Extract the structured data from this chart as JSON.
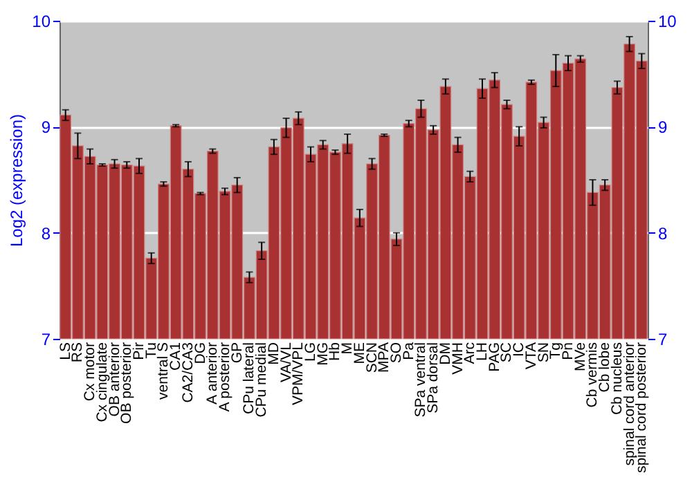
{
  "chart_data": {
    "type": "bar",
    "ylabel": "Log2 (expression)",
    "categories": [
      "LS",
      "RS",
      "Cx motor",
      "Cx cingulate",
      "OB anterior",
      "OB posterior",
      "Pir",
      "Tu",
      "ventral S",
      "CA1",
      "CA2/CA3",
      "DG",
      "A anterior",
      "A posterior",
      "GP",
      "CPu lateral",
      "CPu medial",
      "MD",
      "VA/VL",
      "VPM/VPL",
      "LG",
      "MG",
      "Hb",
      "M",
      "ME",
      "SCN",
      "MPA",
      "SO",
      "Pa",
      "SPa ventral",
      "SPa dorsal",
      "DM",
      "VMH",
      "Arc",
      "LH",
      "PAG",
      "SC",
      "IC",
      "VTA",
      "SN",
      "Tg",
      "Pn",
      "MVe",
      "Cb vermis",
      "Cb lobe",
      "Cb nucleus",
      "spinal cord anterior",
      "spinal cord posterior"
    ],
    "values": [
      9.11,
      8.82,
      8.72,
      8.64,
      8.65,
      8.64,
      8.63,
      7.76,
      8.46,
      9.01,
      8.6,
      8.37,
      8.77,
      8.39,
      8.45,
      7.58,
      7.83,
      8.81,
      8.99,
      9.08,
      8.74,
      8.83,
      8.76,
      8.84,
      8.14,
      8.65,
      8.92,
      7.94,
      9.03,
      9.17,
      8.97,
      9.38,
      8.83,
      8.53,
      9.36,
      9.44,
      9.21,
      8.91,
      9.42,
      9.04,
      9.53,
      9.6,
      9.64,
      8.38,
      8.45,
      9.37,
      9.78,
      9.62
    ],
    "errors": [
      0.05,
      0.12,
      0.07,
      0.01,
      0.04,
      0.03,
      0.07,
      0.05,
      0.02,
      0.01,
      0.07,
      0.01,
      0.02,
      0.03,
      0.07,
      0.05,
      0.08,
      0.07,
      0.09,
      0.06,
      0.07,
      0.04,
      0.02,
      0.09,
      0.08,
      0.05,
      0.01,
      0.06,
      0.03,
      0.08,
      0.04,
      0.07,
      0.07,
      0.05,
      0.09,
      0.07,
      0.04,
      0.09,
      0.02,
      0.05,
      0.15,
      0.07,
      0.03,
      0.12,
      0.05,
      0.06,
      0.07,
      0.07
    ],
    "color": "#a83232",
    "ylim": [
      7,
      10
    ],
    "yticks": [
      7,
      8,
      9,
      10
    ],
    "y2lim": [
      7,
      10
    ],
    "y2ticks": [
      7,
      8,
      9,
      10
    ],
    "grid": "y"
  }
}
